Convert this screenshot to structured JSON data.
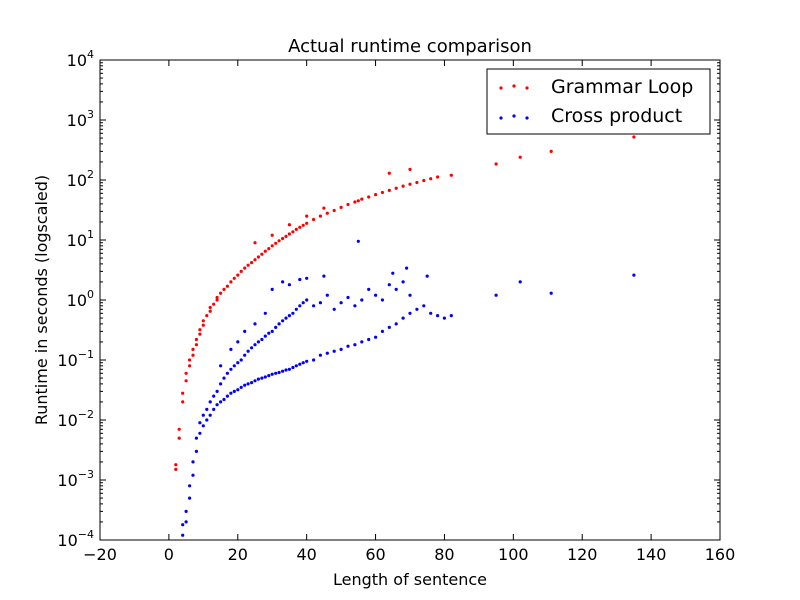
{
  "chart_data": {
    "type": "scatter",
    "title": "Actual runtime comparison",
    "xlabel": "Length of sentence",
    "ylabel": "Runtime in seconds (logscaled)",
    "yscale": "log",
    "xlim": [
      -20,
      160
    ],
    "ylim": [
      0.0001,
      10000
    ],
    "grid": false,
    "legend_position": "top-right",
    "xticks": [
      "−20",
      "0",
      "20",
      "40",
      "60",
      "80",
      "100",
      "120",
      "140",
      "160"
    ],
    "yticks": [
      {
        "base": "10",
        "exp": "−4"
      },
      {
        "base": "10",
        "exp": "−3"
      },
      {
        "base": "10",
        "exp": "−2"
      },
      {
        "base": "10",
        "exp": "−1"
      },
      {
        "base": "10",
        "exp": "0"
      },
      {
        "base": "10",
        "exp": "1"
      },
      {
        "base": "10",
        "exp": "2"
      },
      {
        "base": "10",
        "exp": "3"
      },
      {
        "base": "10",
        "exp": "4"
      }
    ],
    "series": [
      {
        "name": "Grammar Loop",
        "color": "#ff0000",
        "points": [
          [
            2,
            0.0015
          ],
          [
            2,
            0.0018
          ],
          [
            3,
            0.005
          ],
          [
            3,
            0.007
          ],
          [
            4,
            0.02
          ],
          [
            4,
            0.028
          ],
          [
            5,
            0.045
          ],
          [
            5,
            0.06
          ],
          [
            6,
            0.08
          ],
          [
            6,
            0.1
          ],
          [
            7,
            0.12
          ],
          [
            7,
            0.15
          ],
          [
            8,
            0.18
          ],
          [
            8,
            0.22
          ],
          [
            9,
            0.27
          ],
          [
            9,
            0.32
          ],
          [
            10,
            0.38
          ],
          [
            10,
            0.45
          ],
          [
            11,
            0.55
          ],
          [
            12,
            0.65
          ],
          [
            12,
            0.75
          ],
          [
            13,
            0.85
          ],
          [
            14,
            1.0
          ],
          [
            14,
            1.1
          ],
          [
            15,
            1.3
          ],
          [
            16,
            1.5
          ],
          [
            17,
            1.7
          ],
          [
            18,
            2.0
          ],
          [
            19,
            2.3
          ],
          [
            20,
            2.6
          ],
          [
            21,
            3.0
          ],
          [
            22,
            3.4
          ],
          [
            23,
            3.8
          ],
          [
            24,
            4.2
          ],
          [
            25,
            4.7
          ],
          [
            26,
            5.2
          ],
          [
            27,
            5.8
          ],
          [
            28,
            6.5
          ],
          [
            29,
            7.2
          ],
          [
            30,
            8.0
          ],
          [
            31,
            8.8
          ],
          [
            32,
            9.7
          ],
          [
            33,
            10.6
          ],
          [
            34,
            11.5
          ],
          [
            35,
            12.6
          ],
          [
            36,
            13.7
          ],
          [
            37,
            15
          ],
          [
            38,
            16.3
          ],
          [
            39,
            17.6
          ],
          [
            40,
            19
          ],
          [
            42,
            22
          ],
          [
            44,
            25
          ],
          [
            46,
            28
          ],
          [
            48,
            31
          ],
          [
            50,
            35
          ],
          [
            52,
            39
          ],
          [
            54,
            43
          ],
          [
            56,
            48
          ],
          [
            58,
            52
          ],
          [
            60,
            57
          ],
          [
            62,
            62
          ],
          [
            64,
            67
          ],
          [
            66,
            73
          ],
          [
            68,
            79
          ],
          [
            70,
            85
          ],
          [
            72,
            91
          ],
          [
            74,
            98
          ],
          [
            76,
            105
          ],
          [
            78,
            112
          ],
          [
            82,
            120
          ],
          [
            95,
            185
          ],
          [
            102,
            240
          ],
          [
            111,
            300
          ],
          [
            135,
            520
          ],
          [
            25,
            9
          ],
          [
            30,
            12
          ],
          [
            35,
            18
          ],
          [
            40,
            25
          ],
          [
            45,
            34
          ],
          [
            55,
            45
          ],
          [
            64,
            130
          ],
          [
            70,
            150
          ]
        ]
      },
      {
        "name": "Cross product",
        "color": "#0000ff",
        "points": [
          [
            4,
            0.00012
          ],
          [
            4,
            0.00018
          ],
          [
            5,
            0.0002
          ],
          [
            5,
            0.0003
          ],
          [
            6,
            0.0005
          ],
          [
            6,
            0.0008
          ],
          [
            7,
            0.0012
          ],
          [
            7,
            0.002
          ],
          [
            8,
            0.003
          ],
          [
            8,
            0.005
          ],
          [
            9,
            0.006
          ],
          [
            9,
            0.009
          ],
          [
            10,
            0.008
          ],
          [
            10,
            0.012
          ],
          [
            11,
            0.01
          ],
          [
            11,
            0.015
          ],
          [
            12,
            0.012
          ],
          [
            12,
            0.02
          ],
          [
            13,
            0.015
          ],
          [
            13,
            0.025
          ],
          [
            14,
            0.018
          ],
          [
            14,
            0.03
          ],
          [
            15,
            0.02
          ],
          [
            15,
            0.04
          ],
          [
            16,
            0.022
          ],
          [
            16,
            0.05
          ],
          [
            17,
            0.025
          ],
          [
            17,
            0.06
          ],
          [
            18,
            0.028
          ],
          [
            18,
            0.07
          ],
          [
            19,
            0.03
          ],
          [
            19,
            0.08
          ],
          [
            20,
            0.032
          ],
          [
            20,
            0.09
          ],
          [
            21,
            0.035
          ],
          [
            21,
            0.1
          ],
          [
            22,
            0.038
          ],
          [
            22,
            0.12
          ],
          [
            23,
            0.04
          ],
          [
            23,
            0.14
          ],
          [
            24,
            0.042
          ],
          [
            24,
            0.16
          ],
          [
            25,
            0.045
          ],
          [
            25,
            0.18
          ],
          [
            26,
            0.048
          ],
          [
            26,
            0.2
          ],
          [
            27,
            0.05
          ],
          [
            27,
            0.22
          ],
          [
            28,
            0.052
          ],
          [
            28,
            0.25
          ],
          [
            29,
            0.055
          ],
          [
            29,
            0.28
          ],
          [
            30,
            0.058
          ],
          [
            30,
            0.3
          ],
          [
            31,
            0.06
          ],
          [
            31,
            0.35
          ],
          [
            32,
            0.062
          ],
          [
            32,
            0.4
          ],
          [
            33,
            0.065
          ],
          [
            33,
            0.45
          ],
          [
            34,
            0.068
          ],
          [
            34,
            0.5
          ],
          [
            35,
            0.07
          ],
          [
            35,
            0.55
          ],
          [
            36,
            0.075
          ],
          [
            36,
            0.6
          ],
          [
            37,
            0.08
          ],
          [
            37,
            0.7
          ],
          [
            38,
            0.085
          ],
          [
            38,
            0.8
          ],
          [
            39,
            0.09
          ],
          [
            39,
            0.9
          ],
          [
            40,
            0.095
          ],
          [
            40,
            1.0
          ],
          [
            42,
            0.1
          ],
          [
            42,
            0.8
          ],
          [
            44,
            0.12
          ],
          [
            44,
            0.9
          ],
          [
            46,
            0.13
          ],
          [
            46,
            1.2
          ],
          [
            48,
            0.14
          ],
          [
            48,
            0.7
          ],
          [
            50,
            0.15
          ],
          [
            50,
            0.9
          ],
          [
            52,
            0.17
          ],
          [
            52,
            1.1
          ],
          [
            54,
            0.18
          ],
          [
            54,
            0.8
          ],
          [
            56,
            0.2
          ],
          [
            56,
            1.0
          ],
          [
            58,
            0.22
          ],
          [
            58,
            1.5
          ],
          [
            60,
            0.24
          ],
          [
            60,
            1.2
          ],
          [
            62,
            0.3
          ],
          [
            62,
            1.0
          ],
          [
            64,
            0.35
          ],
          [
            64,
            1.8
          ],
          [
            66,
            0.4
          ],
          [
            66,
            1.5
          ],
          [
            68,
            0.5
          ],
          [
            68,
            2.0
          ],
          [
            70,
            0.6
          ],
          [
            70,
            1.2
          ],
          [
            72,
            0.7
          ],
          [
            74,
            0.8
          ],
          [
            76,
            0.6
          ],
          [
            78,
            0.55
          ],
          [
            80,
            0.5
          ],
          [
            82,
            0.55
          ],
          [
            95,
            1.2
          ],
          [
            102,
            2.0
          ],
          [
            111,
            1.3
          ],
          [
            135,
            2.6
          ],
          [
            30,
            1.5
          ],
          [
            33,
            2.0
          ],
          [
            35,
            1.8
          ],
          [
            38,
            2.2
          ],
          [
            40,
            2.3
          ],
          [
            45,
            2.5
          ],
          [
            55,
            9.5
          ],
          [
            65,
            2.8
          ],
          [
            69,
            3.4
          ],
          [
            75,
            2.5
          ],
          [
            22,
            0.3
          ],
          [
            25,
            0.4
          ],
          [
            28,
            0.6
          ],
          [
            18,
            0.15
          ],
          [
            20,
            0.2
          ],
          [
            15,
            0.08
          ]
        ]
      }
    ]
  }
}
